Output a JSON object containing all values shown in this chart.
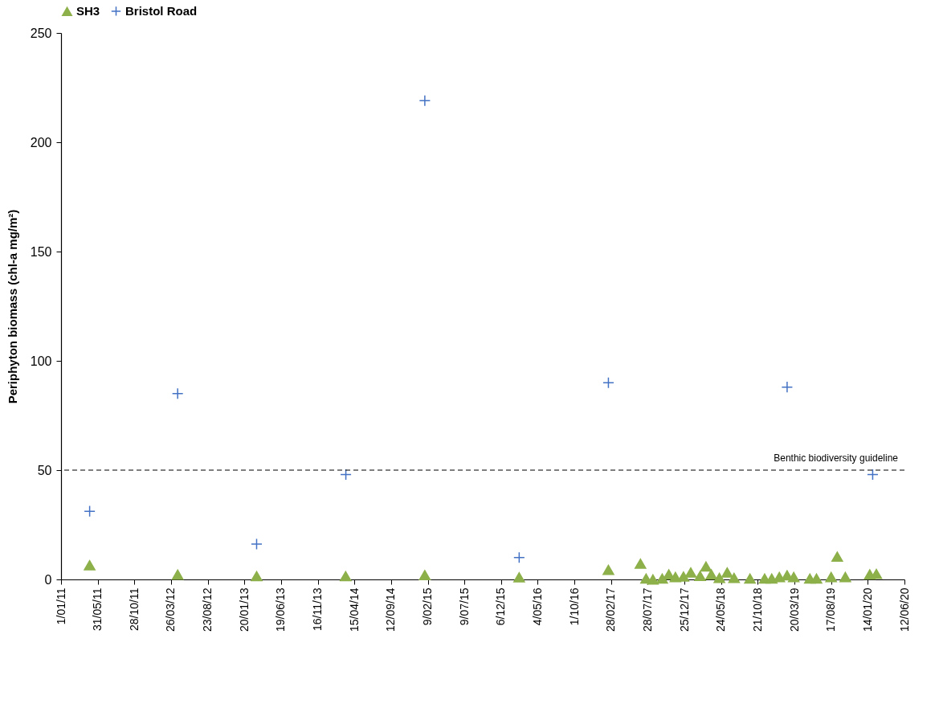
{
  "chart_data": {
    "type": "scatter",
    "ylabel": "Periphyton biomass (chl-a mg/m²)",
    "legend": "top",
    "xlim": [
      "2011-01-01",
      "2020-06-12"
    ],
    "xticks": [
      {
        "value": "2011-01-01",
        "label": "1/01/11"
      },
      {
        "value": "2011-05-31",
        "label": "31/05/11"
      },
      {
        "value": "2011-10-28",
        "label": "28/10/11"
      },
      {
        "value": "2012-03-26",
        "label": "26/03/12"
      },
      {
        "value": "2012-08-23",
        "label": "23/08/12"
      },
      {
        "value": "2013-01-20",
        "label": "20/01/13"
      },
      {
        "value": "2013-06-19",
        "label": "19/06/13"
      },
      {
        "value": "2013-11-16",
        "label": "16/11/13"
      },
      {
        "value": "2014-04-15",
        "label": "15/04/14"
      },
      {
        "value": "2014-09-12",
        "label": "12/09/14"
      },
      {
        "value": "2015-02-09",
        "label": "9/02/15"
      },
      {
        "value": "2015-07-09",
        "label": "9/07/15"
      },
      {
        "value": "2015-12-06",
        "label": "6/12/15"
      },
      {
        "value": "2016-05-04",
        "label": "4/05/16"
      },
      {
        "value": "2016-10-01",
        "label": "1/10/16"
      },
      {
        "value": "2017-02-28",
        "label": "28/02/17"
      },
      {
        "value": "2017-07-28",
        "label": "28/07/17"
      },
      {
        "value": "2017-12-25",
        "label": "25/12/17"
      },
      {
        "value": "2018-05-24",
        "label": "24/05/18"
      },
      {
        "value": "2018-10-21",
        "label": "21/10/18"
      },
      {
        "value": "2019-03-20",
        "label": "20/03/19"
      },
      {
        "value": "2019-08-17",
        "label": "17/08/19"
      },
      {
        "value": "2020-01-14",
        "label": "14/01/20"
      },
      {
        "value": "2020-06-12",
        "label": "12/06/20"
      }
    ],
    "ylim": [
      0,
      250
    ],
    "yticks": [
      0,
      50,
      100,
      150,
      200,
      250
    ],
    "ref_lines": [
      {
        "axis": "y",
        "value": 50,
        "label": "Benthic biodiversity guideline",
        "color": "#000000",
        "line_style": "dashed"
      }
    ],
    "series": [
      {
        "name": "SH3",
        "color": "#8db04a",
        "marker": "triangle",
        "x": [
          "2011-04-28",
          "2012-04-22",
          "2013-03-11",
          "2014-03-10",
          "2015-01-28",
          "2016-02-18",
          "2017-02-17",
          "2017-06-28",
          "2017-07-21",
          "2017-08-18",
          "2017-09-25",
          "2017-10-22",
          "2017-11-18",
          "2017-12-21",
          "2018-01-20",
          "2018-02-27",
          "2018-03-23",
          "2018-04-14",
          "2018-05-17",
          "2018-06-18",
          "2018-07-16",
          "2018-09-19",
          "2018-11-18",
          "2018-12-17",
          "2019-01-17",
          "2019-02-18",
          "2019-03-17",
          "2019-05-22",
          "2019-06-18",
          "2019-08-17",
          "2019-09-11",
          "2019-10-14",
          "2020-01-22",
          "2020-02-18"
        ],
        "values": [
          6.5,
          2.2,
          1.5,
          1.5,
          2,
          1,
          4.4,
          7.2,
          0.4,
          0,
          0.4,
          2.3,
          1.1,
          1.3,
          3.2,
          1.6,
          5.9,
          2.3,
          0.7,
          3.2,
          0.7,
          0.4,
          0.4,
          0.4,
          1.1,
          1.9,
          1.1,
          0.4,
          0.4,
          1.1,
          10.4,
          1.1,
          2.3,
          2.5
        ]
      },
      {
        "name": "Bristol Road",
        "color": "#4472c4",
        "marker": "cross",
        "x": [
          "2011-04-28",
          "2012-04-22",
          "2013-03-11",
          "2014-03-11",
          "2015-01-28",
          "2016-02-18",
          "2017-02-17",
          "2019-02-18",
          "2020-02-03"
        ],
        "values": [
          31.2,
          85,
          16.2,
          48,
          219,
          10,
          90,
          88,
          48
        ]
      }
    ]
  }
}
